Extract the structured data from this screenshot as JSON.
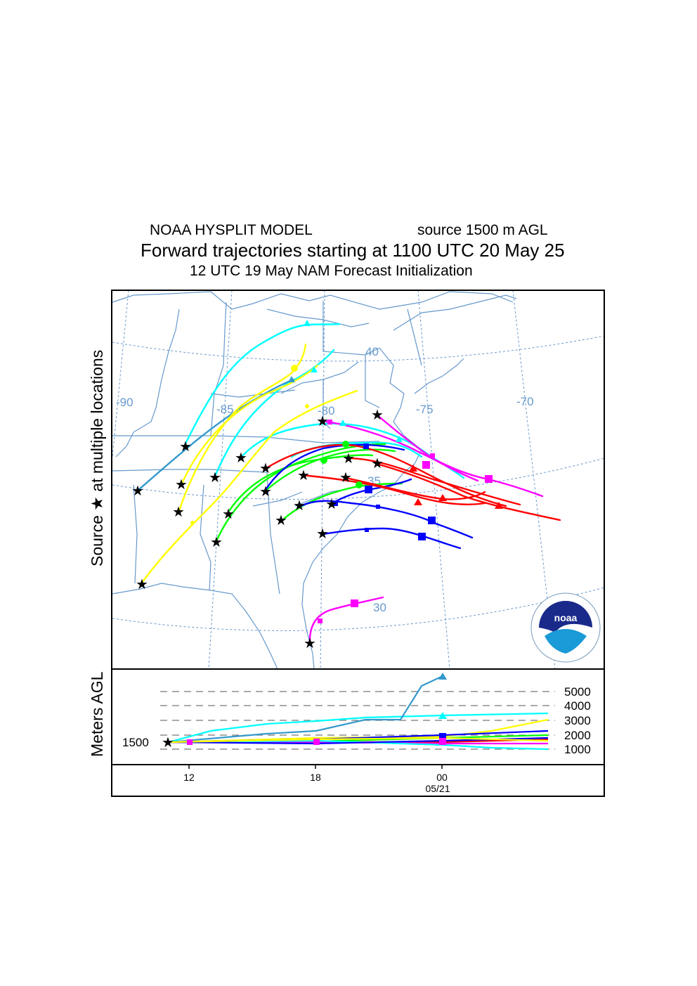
{
  "header": {
    "model": "NOAA HYSPLIT MODEL",
    "source_height": "source 1500 m AGL",
    "title": "Forward trajectories starting at 1100 UTC 20 May 25",
    "init": "12 UTC 19 May    NAM   Forecast Initialization"
  },
  "side_labels": {
    "source": "Source ★   at multiple locations",
    "meters": "Meters AGL"
  },
  "map": {
    "lat_labels": [
      "40",
      "35",
      "30"
    ],
    "lon_labels": [
      "-90",
      "-85",
      "-80",
      "-75",
      "-70"
    ],
    "logo_text": "noaa",
    "logo_ring": "NATIONAL OCEANIC AND ATMOSPHERIC ADMINISTRATION • U.S. DEPARTMENT OF COMMERCE"
  },
  "height_panel": {
    "y_tick_labels": [
      "5000",
      "4000",
      "3000",
      "2000",
      "1000"
    ],
    "start_label": "1500",
    "x_tick_labels": [
      "12",
      "18",
      "00"
    ],
    "date_label": "05/21"
  },
  "colors": {
    "red": "#ff0000",
    "blue": "#0000ff",
    "green": "#00ff00",
    "cyan": "#00ffff",
    "yellow": "#ffff00",
    "magenta": "#ff00ff",
    "steel": "#3399cc",
    "map_lines": "#6699cc"
  }
}
